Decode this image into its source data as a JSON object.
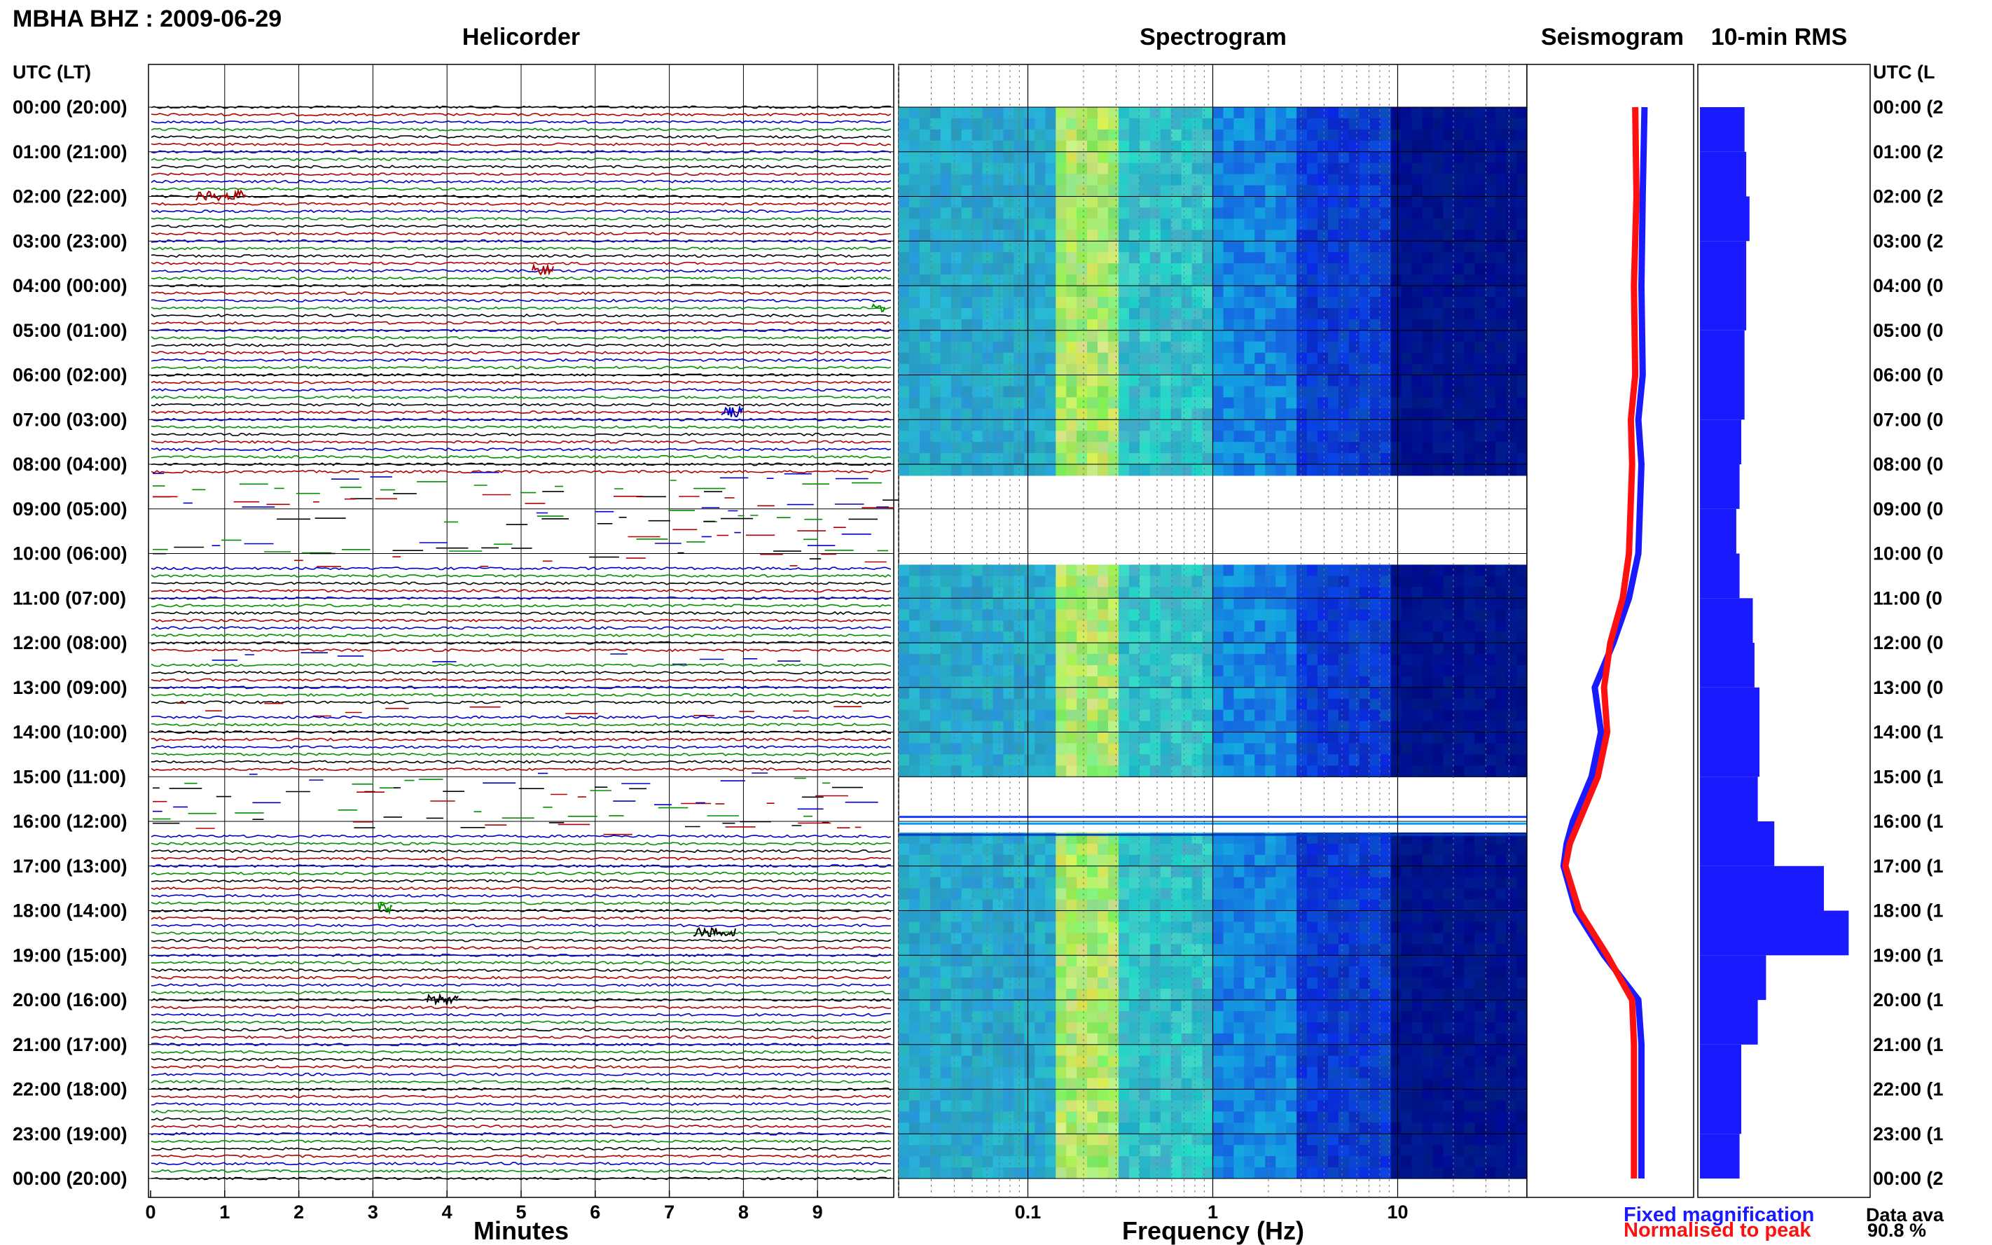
{
  "station_title": "MBHA BHZ : 2009-06-29",
  "panels": {
    "helicorder": "Helicorder",
    "spectrogram": "Spectrogram",
    "seismogram": "Seismogram",
    "rms": "10-min RMS"
  },
  "axis_header_left": "UTC (LT)",
  "axis_header_right": "UTC (L",
  "hour_labels": [
    "00:00 (20:00)",
    "01:00 (21:00)",
    "02:00 (22:00)",
    "03:00 (23:00)",
    "04:00 (00:00)",
    "05:00 (01:00)",
    "06:00 (02:00)",
    "07:00 (03:00)",
    "08:00 (04:00)",
    "09:00 (05:00)",
    "10:00 (06:00)",
    "11:00 (07:00)",
    "12:00 (08:00)",
    "13:00 (09:00)",
    "14:00 (10:00)",
    "15:00 (11:00)",
    "16:00 (12:00)",
    "17:00 (13:00)",
    "18:00 (14:00)",
    "19:00 (15:00)",
    "20:00 (16:00)",
    "21:00 (17:00)",
    "22:00 (18:00)",
    "23:00 (19:00)",
    "00:00 (20:00)"
  ],
  "hour_labels_right": [
    "00:00 (2",
    "01:00 (2",
    "02:00 (2",
    "03:00 (2",
    "04:00 (0",
    "05:00 (0",
    "06:00 (0",
    "07:00 (0",
    "08:00 (0",
    "09:00 (0",
    "10:00 (0",
    "11:00 (0",
    "12:00 (0",
    "13:00 (0",
    "14:00 (1",
    "15:00 (1",
    "16:00 (1",
    "17:00 (1",
    "18:00 (1",
    "19:00 (1",
    "20:00 (1",
    "21:00 (1",
    "22:00 (1",
    "23:00 (1",
    "00:00 (2"
  ],
  "minute_ticks": [
    "0",
    "1",
    "2",
    "3",
    "4",
    "5",
    "6",
    "7",
    "8",
    "9"
  ],
  "minutes_label": "Minutes",
  "freq_ticks": [
    "0.1",
    "1",
    "10"
  ],
  "freq_label": "Frequency (Hz)",
  "legend": {
    "fixed": "Fixed magnification",
    "normalised": "Normalised to peak"
  },
  "availability": {
    "label": "Data ava",
    "value": "90.8 %"
  },
  "colors": {
    "fixed": "#1a1aff",
    "normalised": "#ff1010",
    "trace_black": "#000000",
    "trace_red": "#b00000",
    "trace_blue": "#0000c8",
    "trace_green": "#009000"
  },
  "chart_data": [
    {
      "type": "line",
      "title": "Helicorder",
      "xlabel": "Minutes",
      "xlim": [
        0,
        10
      ],
      "trace_colors_cycle": [
        "black",
        "red",
        "blue",
        "green"
      ],
      "gaps_utc": [
        [
          8.25,
          10.25
        ],
        [
          12.3,
          12.35
        ],
        [
          13.4,
          13.5
        ],
        [
          13.7,
          13.8
        ],
        [
          14.95,
          16.3
        ]
      ]
    },
    {
      "type": "heatmap",
      "title": "Spectrogram",
      "xlabel": "Frequency (Hz)",
      "xscale": "log",
      "xlim": [
        0.02,
        50
      ],
      "gaps_utc": [
        [
          8.25,
          10.25
        ],
        [
          12.3,
          12.35
        ],
        [
          13.4,
          13.5
        ],
        [
          13.7,
          13.8
        ],
        [
          14.95,
          16.3
        ],
        [
          20.9,
          20.95
        ]
      ]
    },
    {
      "type": "line",
      "title": "Seismogram",
      "series": [
        {
          "name": "Fixed magnification",
          "hours": [
            0,
            2,
            4,
            6,
            7,
            8,
            10,
            11,
            12,
            13,
            14,
            15,
            16,
            16.5,
            17,
            18,
            19,
            20,
            21,
            22,
            23,
            24
          ],
          "values": [
            0.55,
            0.52,
            0.5,
            0.52,
            0.45,
            0.5,
            0.45,
            0.3,
            0.05,
            -0.25,
            -0.15,
            -0.3,
            -0.6,
            -0.7,
            -0.75,
            -0.55,
            -0.1,
            0.45,
            0.5,
            0.5,
            0.5,
            0.5
          ]
        },
        {
          "name": "Normalised to peak",
          "hours": [
            0,
            2,
            4,
            6,
            7,
            8,
            10,
            11,
            12,
            13,
            14,
            15,
            16,
            16.5,
            17,
            18,
            19,
            20,
            21,
            22,
            23,
            24
          ],
          "values": [
            0.4,
            0.42,
            0.38,
            0.4,
            0.33,
            0.35,
            0.3,
            0.2,
            0.0,
            -0.1,
            -0.05,
            -0.2,
            -0.5,
            -0.65,
            -0.72,
            -0.5,
            -0.05,
            0.35,
            0.38,
            0.38,
            0.38,
            0.38
          ]
        }
      ]
    },
    {
      "type": "bar",
      "title": "10-min RMS",
      "categories": [
        "00",
        "01",
        "02",
        "03",
        "04",
        "05",
        "06",
        "07",
        "08",
        "09",
        "10",
        "11",
        "12",
        "13",
        "14",
        "15",
        "16",
        "17",
        "18",
        "19",
        "20",
        "21",
        "22",
        "23"
      ],
      "values": [
        0.27,
        0.28,
        0.3,
        0.28,
        0.28,
        0.27,
        0.27,
        0.25,
        0.24,
        0.22,
        0.24,
        0.32,
        0.33,
        0.36,
        0.36,
        0.35,
        0.45,
        0.75,
        0.9,
        0.4,
        0.35,
        0.25,
        0.25,
        0.24
      ]
    }
  ]
}
